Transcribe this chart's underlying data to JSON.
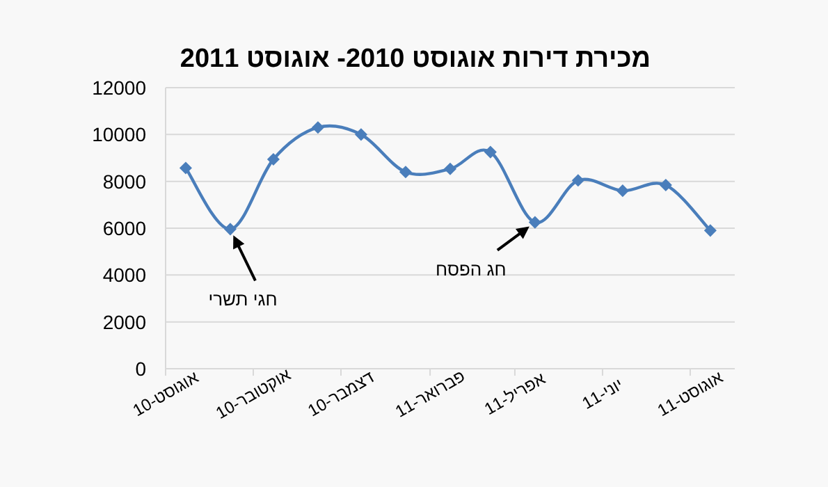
{
  "chart_data": {
    "type": "line",
    "title": "מכירת דירות אוגוסט 2010- אוגוסט 2011",
    "x": [
      "2010-08-15",
      "2010-09-15",
      "2010-10-15",
      "2010-11-15",
      "2010-12-15",
      "2011-01-15",
      "2011-02-15",
      "2011-03-15",
      "2011-04-15",
      "2011-05-15",
      "2011-06-15",
      "2011-07-15",
      "2011-08-15"
    ],
    "series": [
      {
        "color": "#4a7ebb",
        "values": [
          8570,
          5960,
          8940,
          10300,
          10000,
          8400,
          8530,
          9250,
          6250,
          8040,
          7600,
          7840,
          5900
        ]
      }
    ],
    "xlim": [
      "2010-08",
      "2011-09"
    ],
    "xticks": [
      {
        "value": "2010-08",
        "label": "אוגוסט-10"
      },
      {
        "value": "2010-10",
        "label": "אוקטובר-10"
      },
      {
        "value": "2010-12",
        "label": "דצמבר-10"
      },
      {
        "value": "2011-02",
        "label": "פברואר-11"
      },
      {
        "value": "2011-04",
        "label": "אפריל-11"
      },
      {
        "value": "2011-06",
        "label": "יוני-11"
      },
      {
        "value": "2011-08",
        "label": "אוגוסט-11"
      }
    ],
    "ylim": [
      0,
      12000
    ],
    "yticks": [
      0,
      2000,
      4000,
      6000,
      8000,
      10000,
      12000
    ],
    "grid": "y",
    "marker": "diamond",
    "line_style": "solid",
    "annotations": [
      {
        "text": "חגי תשרי",
        "x": "2010-09-15",
        "y": 5960
      },
      {
        "text": "חג הפסח",
        "x": "2011-04-15",
        "y": 6250
      }
    ]
  }
}
